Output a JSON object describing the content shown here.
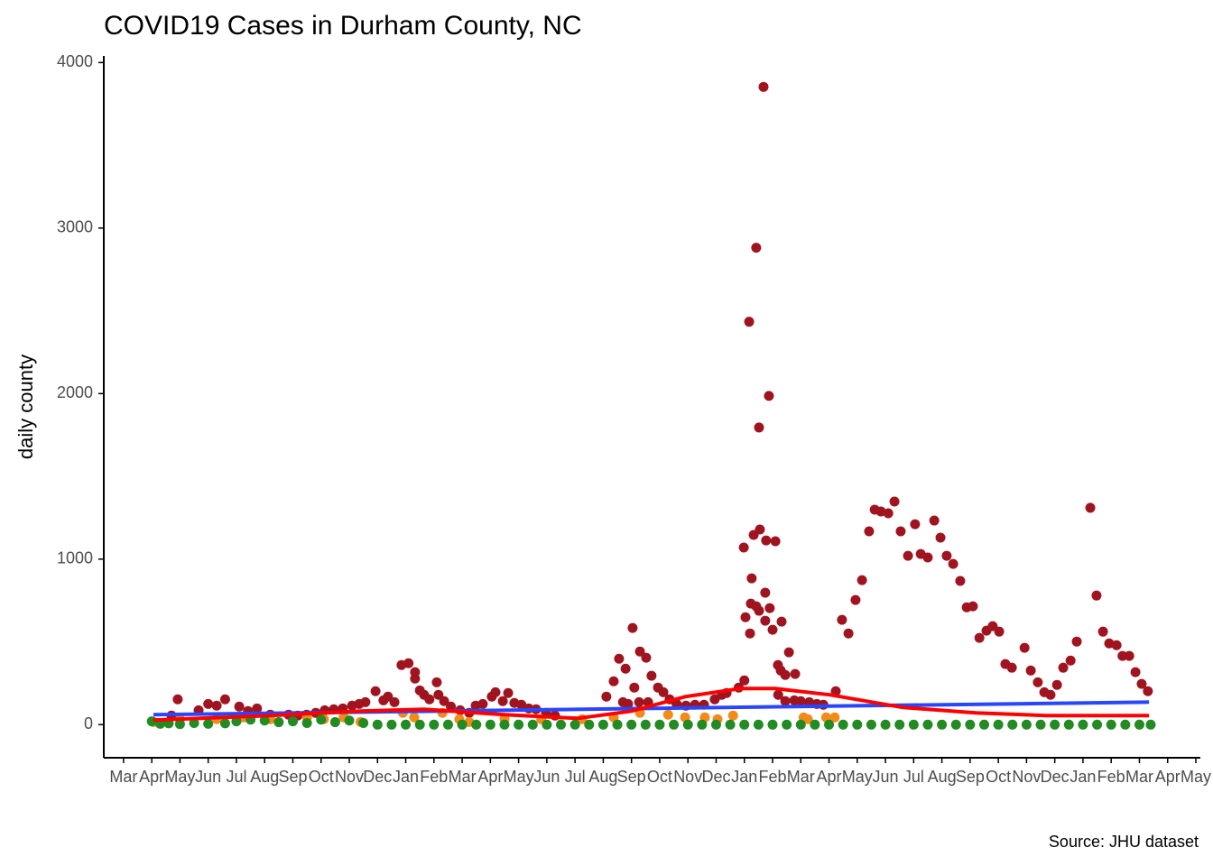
{
  "chart_data": {
    "type": "scatter",
    "title": "COVID19 Cases in Durham County, NC",
    "y_label": "daily county",
    "caption": "Source: JHU dataset",
    "xlim": [
      -0.7,
      38.16
    ],
    "xticks": [
      {
        "value": 0,
        "label": "Mar"
      },
      {
        "value": 1,
        "label": "Apr"
      },
      {
        "value": 2,
        "label": "May"
      },
      {
        "value": 3,
        "label": "Jun"
      },
      {
        "value": 4,
        "label": "Jul"
      },
      {
        "value": 5,
        "label": "Aug"
      },
      {
        "value": 6,
        "label": "Sep"
      },
      {
        "value": 7,
        "label": "Oct"
      },
      {
        "value": 8,
        "label": "Nov"
      },
      {
        "value": 9,
        "label": "Dec"
      },
      {
        "value": 10,
        "label": "Jan"
      },
      {
        "value": 11,
        "label": "Feb"
      },
      {
        "value": 12,
        "label": "Mar"
      },
      {
        "value": 13,
        "label": "Apr"
      },
      {
        "value": 14,
        "label": "May"
      },
      {
        "value": 15,
        "label": "Jun"
      },
      {
        "value": 16,
        "label": "Jul"
      },
      {
        "value": 17,
        "label": "Aug"
      },
      {
        "value": 18,
        "label": "Sep"
      },
      {
        "value": 19,
        "label": "Oct"
      },
      {
        "value": 20,
        "label": "Nov"
      },
      {
        "value": 21,
        "label": "Dec"
      },
      {
        "value": 22,
        "label": "Jan"
      },
      {
        "value": 23,
        "label": "Feb"
      },
      {
        "value": 24,
        "label": "Mar"
      },
      {
        "value": 25,
        "label": "Apr"
      },
      {
        "value": 26,
        "label": "May"
      },
      {
        "value": 27,
        "label": "Jun"
      },
      {
        "value": 28,
        "label": "Jul"
      },
      {
        "value": 29,
        "label": "Aug"
      },
      {
        "value": 30,
        "label": "Sep"
      },
      {
        "value": 31,
        "label": "Oct"
      },
      {
        "value": 32,
        "label": "Nov"
      },
      {
        "value": 33,
        "label": "Dec"
      },
      {
        "value": 34,
        "label": "Jan"
      },
      {
        "value": 35,
        "label": "Feb"
      },
      {
        "value": 36,
        "label": "Mar"
      },
      {
        "value": 37,
        "label": "Apr"
      },
      {
        "value": 38,
        "label": "May"
      }
    ],
    "ylim": [
      -200,
      4040
    ],
    "yticks": [
      0,
      1000,
      2000,
      3000,
      4000
    ],
    "series": [
      {
        "kind": "points",
        "color": "#a01420",
        "x": [
          1.7,
          1.92,
          2.66,
          3.0,
          3.3,
          3.6,
          4.1,
          4.41,
          4.73,
          5.2,
          5.85,
          6.17,
          6.49,
          6.81,
          7.13,
          7.45,
          7.77,
          8.1,
          8.35,
          8.57,
          8.93,
          9.21,
          9.37,
          9.6,
          9.85,
          10.1,
          10.33,
          10.33,
          10.5,
          10.65,
          10.84,
          11.1,
          11.16,
          11.36,
          11.6,
          11.93,
          12.25,
          12.48,
          12.73,
          13.05,
          13.18,
          13.44,
          13.63,
          13.85,
          14.1,
          14.36,
          14.62,
          14.97,
          15.29,
          17.11,
          17.37,
          17.56,
          17.7,
          17.79,
          17.88,
          18.04,
          18.1,
          18.27,
          18.3,
          18.52,
          18.59,
          18.71,
          18.94,
          19.13,
          19.35,
          19.6,
          19.93,
          20.25,
          20.57,
          20.95,
          21.2,
          21.37,
          21.8,
          21.98,
          22.0,
          22.04,
          22.17,
          22.2,
          22.23,
          22.26,
          22.33,
          22.42,
          22.42,
          22.52,
          22.52,
          22.55,
          22.68,
          22.74,
          22.74,
          22.77,
          22.87,
          22.9,
          23.0,
          23.1,
          23.19,
          23.2,
          23.29,
          23.32,
          23.45,
          23.45,
          23.58,
          23.77,
          23.8,
          24.0,
          24.3,
          24.57,
          24.8,
          25.24,
          25.46,
          25.69,
          25.94,
          26.17,
          26.42,
          26.62,
          26.84,
          27.1,
          27.32,
          27.54,
          27.8,
          28.05,
          28.25,
          28.5,
          28.73,
          28.95,
          29.17,
          29.4,
          29.65,
          29.88,
          30.1,
          30.33,
          30.58,
          30.8,
          31.03,
          31.25,
          31.48,
          31.93,
          32.15,
          32.4,
          32.63,
          32.85,
          33.08,
          33.3,
          33.56,
          33.78,
          34.26,
          34.48,
          34.71,
          34.93,
          35.19,
          35.4,
          35.64,
          35.86,
          36.08,
          36.3
        ],
        "values": [
          55,
          153,
          87,
          125,
          115,
          153,
          109,
          82,
          98,
          60,
          60,
          55,
          60,
          71,
          87,
          93,
          98,
          115,
          125,
          136,
          202,
          147,
          169,
          136,
          360,
          371,
          317,
          278,
          207,
          180,
          153,
          256,
          180,
          142,
          109,
          87,
          71,
          115,
          125,
          169,
          196,
          142,
          191,
          131,
          120,
          98,
          93,
          71,
          55,
          169,
          262,
          398,
          136,
          338,
          125,
          584,
          224,
          136,
          442,
          404,
          136,
          295,
          224,
          196,
          153,
          125,
          115,
          120,
          120,
          153,
          180,
          191,
          224,
          1070,
          267,
          649,
          2434,
          551,
          731,
          884,
          1146,
          2881,
          715,
          1795,
          688,
          1179,
          3853,
          797,
          628,
          1113,
          1986,
          704,
          573,
          1108,
          360,
          180,
          327,
          622,
          300,
          142,
          437,
          147,
          306,
          142,
          136,
          125,
          120,
          202,
          633,
          551,
          753,
          873,
          1168,
          1299,
          1288,
          1277,
          1348,
          1168,
          1020,
          1211,
          1031,
          1010,
          1233,
          1130,
          1020,
          971,
          868,
          709,
          715,
          524,
          568,
          595,
          562,
          366,
          344,
          464,
          327,
          256,
          196,
          180,
          240,
          344,
          387,
          502,
          1310,
          780,
          562,
          491,
          480,
          415,
          415,
          317,
          246,
          202
        ]
      },
      {
        "kind": "points",
        "color": "#f28b1a",
        "x": [
          1.06,
          2.0,
          3.3,
          4.25,
          5.2,
          6.5,
          7.1,
          7.8,
          8.4,
          9.9,
          10.3,
          11.3,
          11.9,
          12.25,
          13.5,
          14.8,
          16.25,
          17.37,
          18.3,
          19.3,
          19.9,
          20.6,
          21.05,
          21.6,
          24.1,
          24.25,
          24.9,
          25.2
        ],
        "values": [
          16,
          33,
          33,
          44,
          33,
          44,
          33,
          44,
          16,
          71,
          44,
          71,
          33,
          16,
          33,
          33,
          33,
          44,
          71,
          60,
          44,
          44,
          33,
          55,
          44,
          33,
          44,
          44
        ]
      },
      {
        "kind": "points",
        "color": "#228b22",
        "x": [
          1.0,
          1.3,
          1.6,
          2.0,
          2.5,
          3.0,
          3.6,
          4.0,
          4.5,
          5.0,
          5.5,
          6.0,
          6.5,
          7.0,
          7.5,
          8.0,
          8.5,
          9.0,
          9.5,
          10.0,
          10.5,
          11.0,
          11.5,
          12.0,
          12.5,
          13.0,
          13.5,
          14.0,
          14.5,
          15.0,
          15.5,
          16.0,
          16.5,
          17.0,
          17.5,
          18.0,
          18.5,
          19.0,
          19.5,
          20.0,
          20.5,
          21.0,
          21.5,
          22.0,
          22.5,
          23.0,
          23.5,
          24.0,
          24.5,
          25.0,
          25.5,
          26.0,
          26.5,
          27.0,
          27.5,
          28.0,
          28.5,
          29.0,
          29.5,
          30.0,
          30.5,
          31.0,
          31.5,
          32.0,
          32.5,
          33.0,
          33.5,
          34.0,
          34.5,
          35.0,
          35.5,
          36.0,
          36.4
        ],
        "values": [
          20,
          5,
          8,
          3,
          10,
          5,
          8,
          20,
          30,
          25,
          15,
          20,
          10,
          30,
          15,
          25,
          10,
          0,
          0,
          0,
          0,
          0,
          0,
          0,
          0,
          0,
          0,
          0,
          0,
          0,
          0,
          0,
          0,
          0,
          0,
          0,
          0,
          0,
          0,
          0,
          0,
          0,
          0,
          0,
          0,
          0,
          0,
          0,
          0,
          0,
          0,
          0,
          0,
          0,
          0,
          0,
          0,
          0,
          0,
          0,
          0,
          0,
          0,
          0,
          0,
          0,
          0,
          0,
          0,
          0,
          0,
          0,
          0
        ]
      },
      {
        "kind": "line",
        "color": "#2846ff",
        "x": [
          1.06,
          36.34
        ],
        "values": [
          60,
          136
        ]
      },
      {
        "kind": "line",
        "color": "#ff0000",
        "x": [
          1.06,
          5.2,
          8.4,
          10.65,
          13.5,
          16.1,
          18.0,
          19.9,
          21.85,
          23.1,
          25.05,
          27.6,
          30.2,
          32.7,
          36.34
        ],
        "values": [
          27,
          55,
          82,
          93,
          60,
          38,
          82,
          169,
          218,
          218,
          180,
          104,
          71,
          55,
          55
        ]
      }
    ]
  }
}
